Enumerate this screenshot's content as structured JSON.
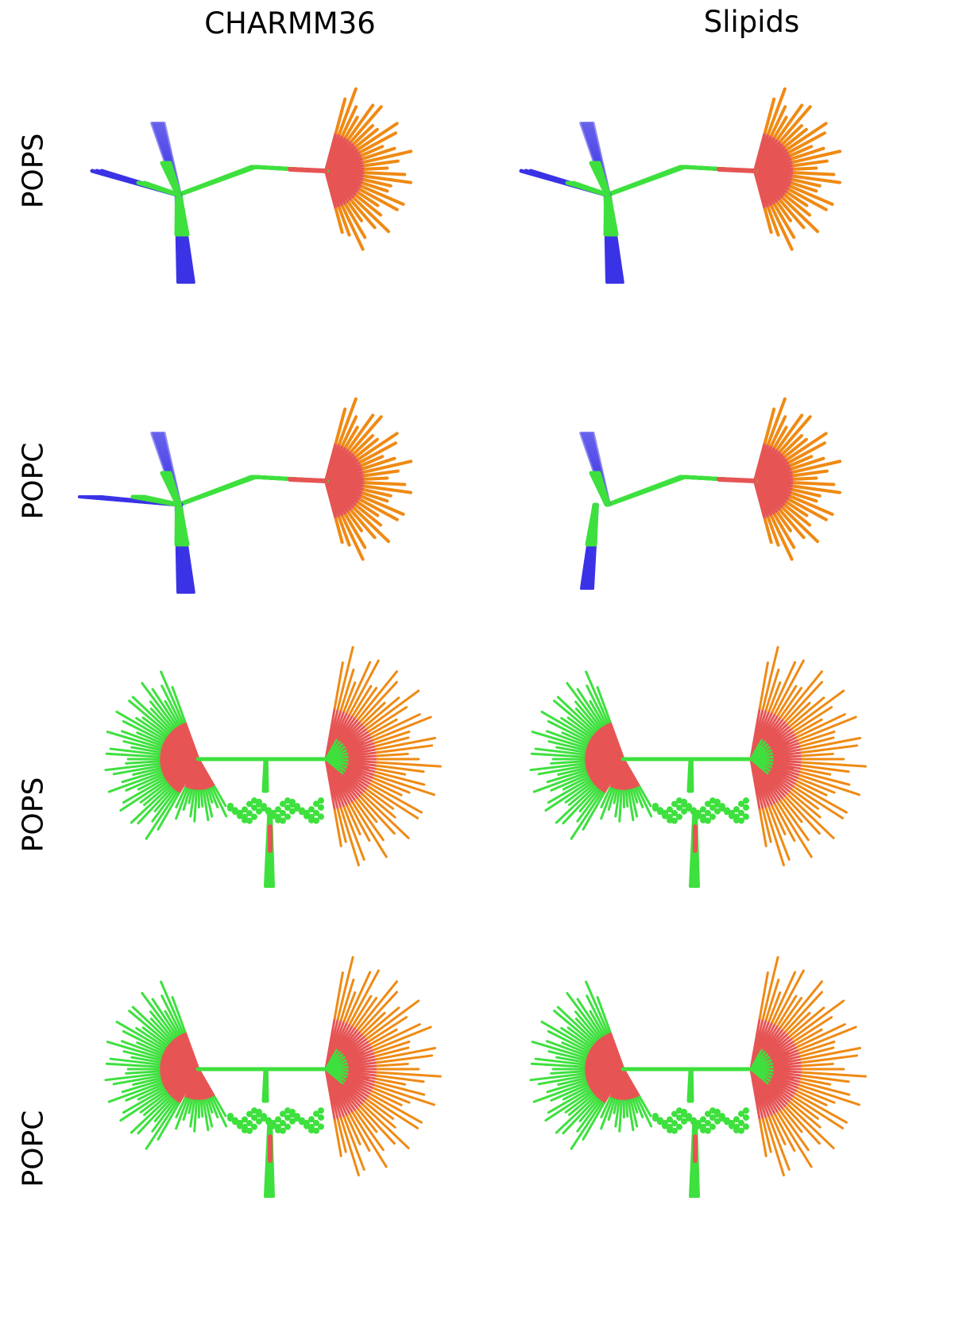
{
  "columns": [
    "CHARMM36",
    "Slipids"
  ],
  "rows": [
    "POPS",
    "POPC",
    "POPS",
    "POPC"
  ],
  "colors": {
    "headgroup_blue": "#3a33e6",
    "carbon_green": "#3ee03e",
    "oxygen_red": "#e65454",
    "tail_orange": "#ef8a14"
  }
}
